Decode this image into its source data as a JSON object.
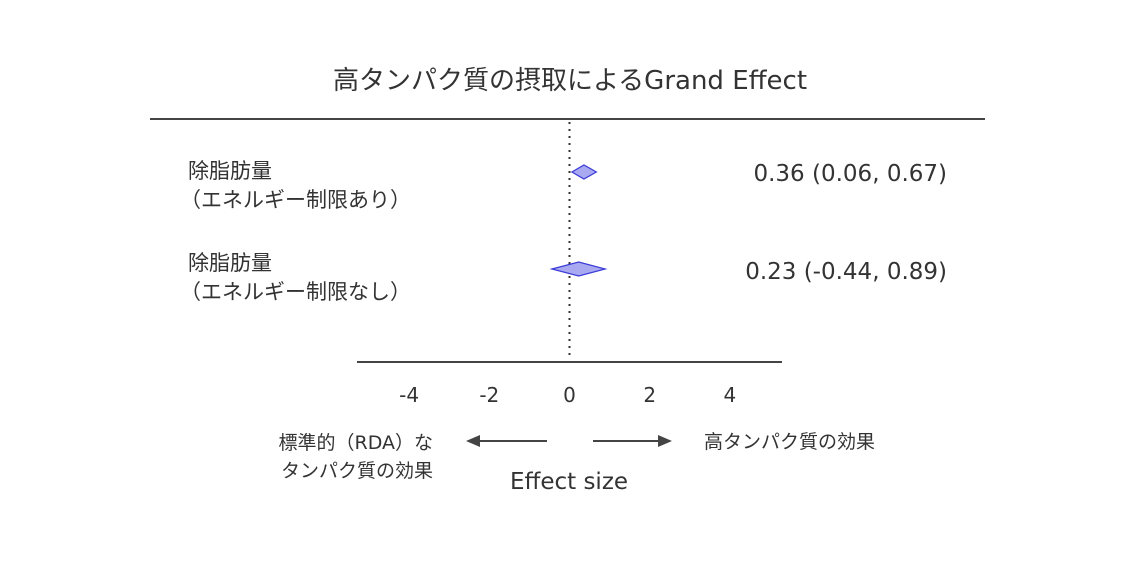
{
  "chart_data": {
    "type": "forest",
    "title": "高タンパク質の摂取によるGrand Effect",
    "xlabel": "Effect size",
    "xlim": [
      -5.3,
      5.3
    ],
    "xticks": [
      -4,
      -2,
      0,
      2,
      4
    ],
    "reference_line": 0,
    "rows": [
      {
        "label_line1": "除脂肪量",
        "label_line2": "（エネルギー制限あり）",
        "estimate": 0.36,
        "lower": 0.06,
        "upper": 0.67,
        "ci_text": "0.36 (0.06, 0.67)"
      },
      {
        "label_line1": "除脂肪量",
        "label_line2": "（エネルギー制限なし）",
        "estimate": 0.23,
        "lower": -0.44,
        "upper": 0.89,
        "ci_text": "0.23 (-0.44, 0.89)"
      }
    ],
    "direction_left_line1": "標準的（RDA）な",
    "direction_left_line2": "タンパク質の効果",
    "direction_right": "高タンパク質の効果",
    "colors": {
      "diamond_fill": "#a9a9f2",
      "diamond_stroke": "#3b3bd6",
      "text": "#333333",
      "axis": "#444444"
    }
  }
}
